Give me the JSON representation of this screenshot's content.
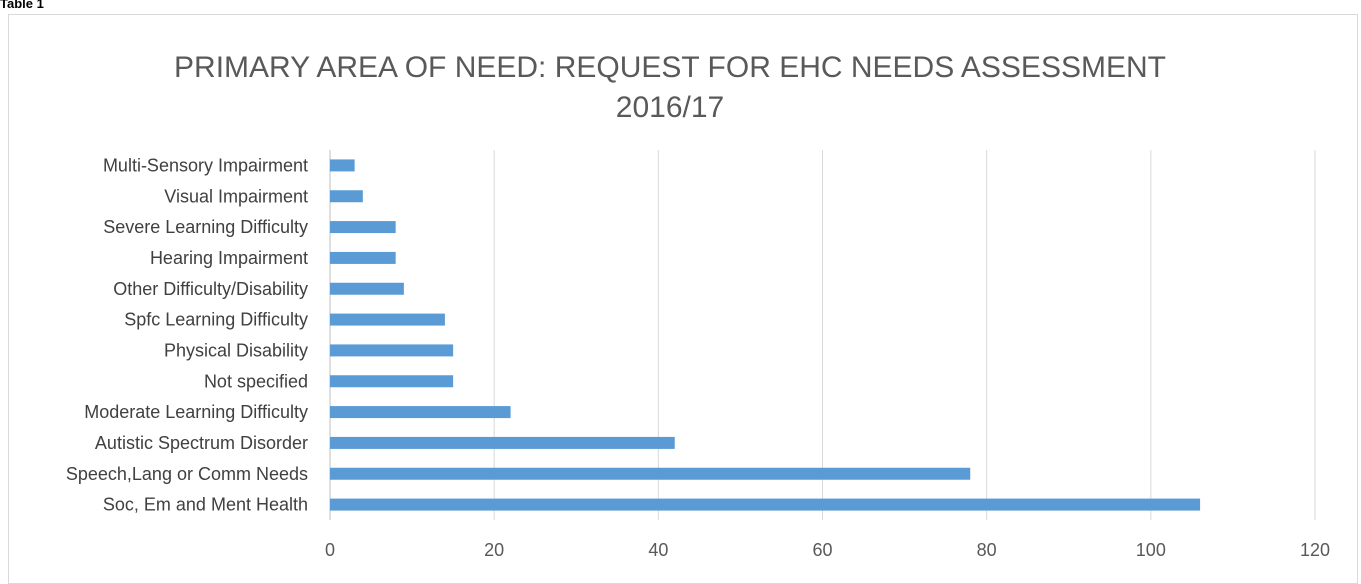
{
  "caption": "Table 1",
  "chart_data": {
    "type": "bar",
    "orientation": "horizontal",
    "title_line1": "PRIMARY AREA OF NEED: REQUEST FOR EHC NEEDS ASSESSMENT",
    "title_line2": "2016/17",
    "categories": [
      "Multi-Sensory Impairment",
      "Visual Impairment",
      "Severe Learning Difficulty",
      "Hearing Impairment",
      "Other Difficulty/Disability",
      "Spfc Learning Difficulty",
      "Physical Disability",
      "Not specified",
      "Moderate Learning Difficulty",
      "Autistic Spectrum Disorder",
      "Speech,Lang or Comm Needs",
      "Soc, Em and Ment Health"
    ],
    "values": [
      3,
      4,
      8,
      8,
      9,
      14,
      15,
      15,
      22,
      42,
      78,
      106
    ],
    "xlim": [
      0,
      120
    ],
    "xticks": [
      0,
      20,
      40,
      60,
      80,
      100,
      120
    ],
    "grid": "vertical",
    "legend": "none",
    "bar_color": "#5b9bd5",
    "grid_color": "#d9d9d9"
  }
}
